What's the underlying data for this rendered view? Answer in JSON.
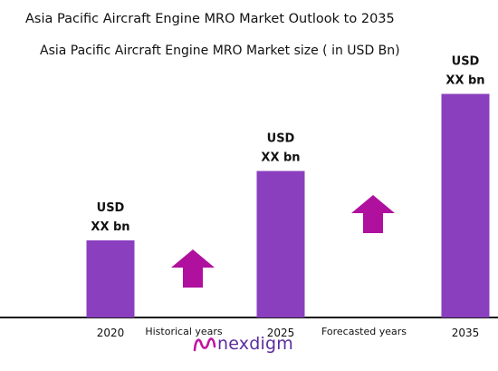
{
  "titles": {
    "title": "Asia Pacific Aircraft Engine MRO  Market Outlook to 2035",
    "subtitle": "Asia Pacific Aircraft Engine MRO Market size ( in USD Bn)"
  },
  "chart_data": {
    "type": "bar",
    "categories": [
      "2020",
      "2025",
      "2035"
    ],
    "values": [
      1,
      1.9,
      2.9
    ],
    "data_labels": [
      [
        "USD",
        "XX bn"
      ],
      [
        "USD",
        "XX bn"
      ],
      [
        "USD",
        "XX bn"
      ]
    ],
    "annotations": [
      "Historical years",
      "Forecasted years"
    ],
    "bar_color": "#8a3fbf",
    "arrow_color": "#b0109e",
    "axis_color": "#1a1a1a"
  },
  "logo": {
    "text": "nexdigm",
    "color": "#5b2d9e"
  }
}
